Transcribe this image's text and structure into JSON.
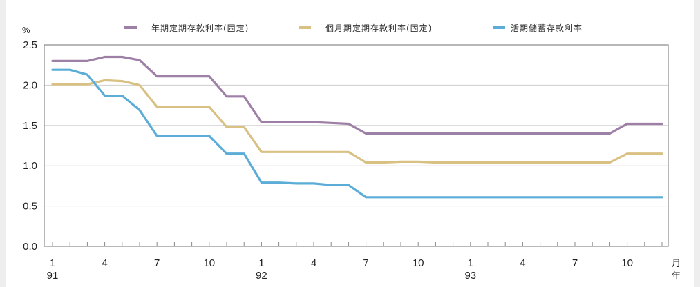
{
  "chart_data": {
    "type": "line",
    "title": "",
    "y_unit": "%",
    "x_unit_labels": [
      "月",
      "年"
    ],
    "ylim": [
      0,
      2.5
    ],
    "y_ticks": [
      "0.0",
      "0.5",
      "1.0",
      "1.5",
      "2.0",
      "2.5"
    ],
    "grid": "horizontal",
    "legend_position": "top",
    "x_month_ticks": [
      "1",
      "4",
      "7",
      "10",
      "1",
      "4",
      "7",
      "10",
      "1",
      "4",
      "7",
      "10"
    ],
    "x_year_ticks": [
      "91",
      "92",
      "93"
    ],
    "x": [
      "91/1",
      "91/2",
      "91/3",
      "91/4",
      "91/5",
      "91/6",
      "91/7",
      "91/8",
      "91/9",
      "91/10",
      "91/11",
      "91/12",
      "92/1",
      "92/2",
      "92/3",
      "92/4",
      "92/5",
      "92/6",
      "92/7",
      "92/8",
      "92/9",
      "92/10",
      "92/11",
      "92/12",
      "93/1",
      "93/2",
      "93/3",
      "93/4",
      "93/5",
      "93/6",
      "93/7",
      "93/8",
      "93/9",
      "93/10",
      "93/11",
      "93/12"
    ],
    "series": [
      {
        "name": "一年期定期存款利率(固定)",
        "color": "#9e7fa6",
        "values": [
          2.3,
          2.3,
          2.3,
          2.35,
          2.35,
          2.31,
          2.11,
          2.11,
          2.11,
          2.11,
          1.86,
          1.86,
          1.54,
          1.54,
          1.54,
          1.54,
          1.53,
          1.52,
          1.4,
          1.4,
          1.4,
          1.4,
          1.4,
          1.4,
          1.4,
          1.4,
          1.4,
          1.4,
          1.4,
          1.4,
          1.4,
          1.4,
          1.4,
          1.52,
          1.52,
          1.52
        ]
      },
      {
        "name": "一個月期定期存款利率(固定)",
        "color": "#d9c184",
        "values": [
          2.01,
          2.01,
          2.01,
          2.06,
          2.05,
          2.0,
          1.73,
          1.73,
          1.73,
          1.73,
          1.48,
          1.48,
          1.17,
          1.17,
          1.17,
          1.17,
          1.17,
          1.17,
          1.04,
          1.04,
          1.05,
          1.05,
          1.04,
          1.04,
          1.04,
          1.04,
          1.04,
          1.04,
          1.04,
          1.04,
          1.04,
          1.04,
          1.04,
          1.15,
          1.15,
          1.15
        ]
      },
      {
        "name": "活期儲蓄存款利率",
        "color": "#5badd8",
        "values": [
          2.19,
          2.19,
          2.13,
          1.87,
          1.87,
          1.69,
          1.37,
          1.37,
          1.37,
          1.37,
          1.15,
          1.15,
          0.79,
          0.79,
          0.78,
          0.78,
          0.76,
          0.76,
          0.61,
          0.61,
          0.61,
          0.61,
          0.61,
          0.61,
          0.61,
          0.61,
          0.61,
          0.61,
          0.61,
          0.61,
          0.61,
          0.61,
          0.61,
          0.61,
          0.61,
          0.61
        ]
      }
    ]
  }
}
